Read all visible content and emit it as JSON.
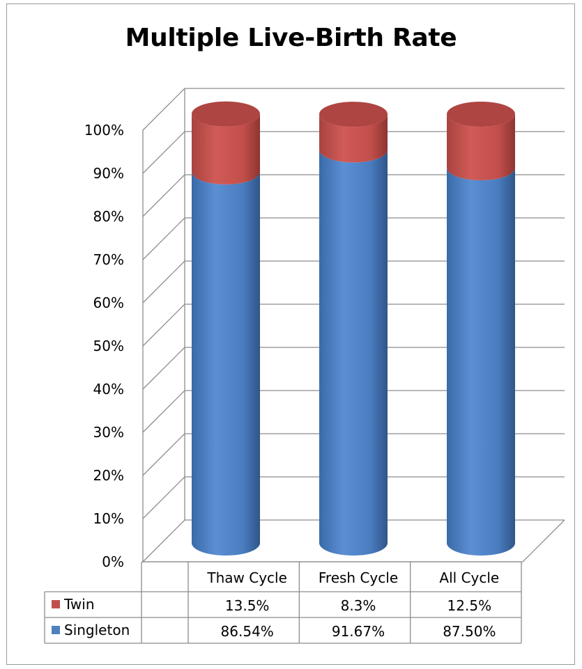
{
  "chart_data": {
    "type": "bar",
    "stacked": true,
    "three_d": true,
    "bar_shape": "cylinder",
    "percent_stacked": true,
    "title": "Multiple Live-Birth Rate",
    "xlabel": "",
    "ylabel": "",
    "ylim": [
      0,
      100
    ],
    "y_tick_labels": [
      "0%",
      "10%",
      "20%",
      "30%",
      "40%",
      "50%",
      "60%",
      "70%",
      "80%",
      "90%",
      "100%"
    ],
    "grid": true,
    "legend": "data-table",
    "categories": [
      "Thaw Cycle",
      "Fresh Cycle",
      "All Cycle"
    ],
    "series": [
      {
        "name": "Singleton",
        "color": "#4f81bd",
        "values": [
          86.54,
          91.67,
          87.5
        ],
        "labels": [
          "86.54%",
          "91.67%",
          "87.50%"
        ]
      },
      {
        "name": "Twin",
        "color": "#c0504d",
        "values": [
          13.5,
          8.3,
          12.5
        ],
        "labels": [
          "13.5%",
          "8.3%",
          "12.5%"
        ]
      }
    ]
  }
}
